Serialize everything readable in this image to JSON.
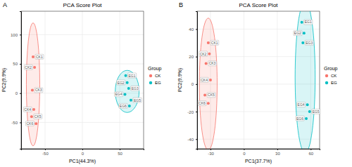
{
  "chart_data": [
    {
      "type": "scatter",
      "panel_label": "A",
      "title": "PCA Score Plot",
      "x_label": "PC1(44.3%)",
      "y_label": "PC2(9.9%)",
      "xlim": [
        -82,
        82
      ],
      "ylim": [
        -95,
        140
      ],
      "xticks": [
        -50,
        0,
        50
      ],
      "yticks": [
        -50,
        0,
        50,
        100
      ],
      "grid": true,
      "legend": "right",
      "legend_title": "Group",
      "series": [
        {
          "name": "CK",
          "color": "#F8766D",
          "x": [
            -66,
            -64,
            -67,
            -65,
            -68,
            -62
          ],
          "values": [
            62,
            44,
            5,
            -28,
            -40,
            -52
          ],
          "point_labels": [
            "CK1",
            "CK2",
            "CK3",
            "CK4",
            "CK5",
            "CK6"
          ],
          "ellipse": {
            "cx": -66,
            "cy": 15,
            "rx": 9,
            "ry": 105
          }
        },
        {
          "name": "EG",
          "color": "#00BFC4",
          "x": [
            58,
            60,
            62,
            57,
            65,
            63
          ],
          "values": [
            30,
            18,
            8,
            -2,
            -12,
            -22
          ],
          "point_labels": [
            "EG1",
            "EG2",
            "EG3",
            "EG4",
            "EG5",
            "EG6"
          ],
          "ellipse": {
            "cx": 60,
            "cy": 3,
            "rx": 16,
            "ry": 36
          }
        }
      ]
    },
    {
      "type": "scatter",
      "panel_label": "B",
      "title": "PCA Score Plot",
      "x_label": "PC1(37.7%)",
      "y_label": "PC2(9.9%)",
      "xlim": [
        -42,
        68
      ],
      "ylim": [
        -47,
        53
      ],
      "xticks": [
        -30,
        0,
        30,
        60
      ],
      "yticks": [
        -40,
        -20,
        0,
        20,
        40
      ],
      "grid": true,
      "legend": "right",
      "legend_title": "Group",
      "series": [
        {
          "name": "CK",
          "color": "#F8766D",
          "x": [
            -32,
            -31,
            -34,
            -30,
            -35,
            -32
          ],
          "values": [
            30,
            22,
            15,
            3,
            -8,
            -14
          ],
          "point_labels": [
            "CK1",
            "CK2",
            "CK3",
            "CK4",
            "CK5",
            "CK6"
          ],
          "ellipse": {
            "cx": -32,
            "cy": 0,
            "rx": 8,
            "ry": 48
          }
        },
        {
          "name": "EG",
          "color": "#00BFC4",
          "x": [
            52,
            54,
            53,
            57,
            59,
            56
          ],
          "values": [
            45,
            37,
            30,
            -15,
            -20,
            -25
          ],
          "point_labels": [
            "EG1",
            "EG2",
            "EG3",
            "EG4",
            "EG5",
            "EG6"
          ],
          "ellipse": {
            "cx": 55,
            "cy": 5,
            "rx": 9,
            "ry": 55
          }
        }
      ]
    }
  ]
}
